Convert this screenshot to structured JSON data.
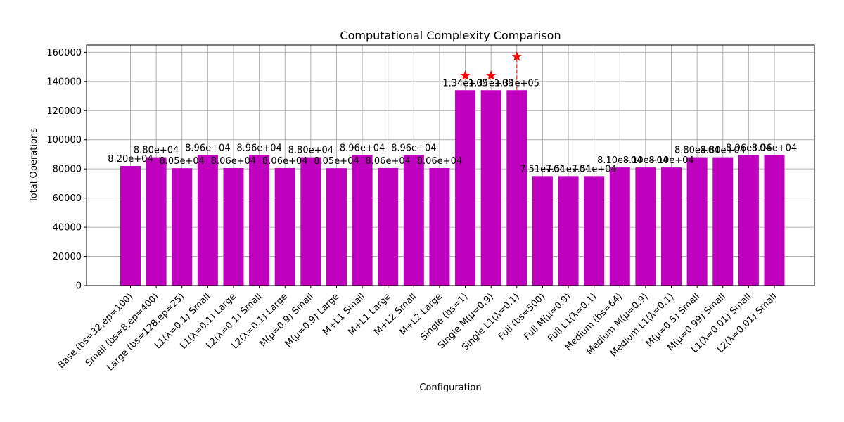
{
  "chart_data": {
    "type": "bar",
    "title": "Computational Complexity Comparison",
    "xlabel": "Configuration",
    "ylabel": "Total Operations",
    "ylim": [
      0,
      165000
    ],
    "yticks": [
      0,
      20000,
      40000,
      60000,
      80000,
      100000,
      120000,
      140000,
      160000
    ],
    "grid": true,
    "bar_color": "#bf00bf",
    "marker_color": "#ff0000",
    "categories": [
      "Base (bs=32,ep=100)",
      "Small (bs=8,ep=400)",
      "Large (bs=128,ep=25)",
      "L1(λ=0.1) Small",
      "L1(λ=0.1) Large",
      "L2(λ=0.1) Small",
      "L2(λ=0.1) Large",
      "M(μ=0.9) Small",
      "M(μ=0.9) Large",
      "M+L1 Small",
      "M+L1 Large",
      "M+L2 Small",
      "M+L2 Large",
      "Single (bs=1)",
      "Single M(μ=0.9)",
      "Single L1(λ=0.1)",
      "Full (bs=500)",
      "Full M(μ=0.9)",
      "Full L1(λ=0.1)",
      "Medium (bs=64)",
      "Medium M(μ=0.9)",
      "Medium L1(λ=0.1)",
      "M(μ=0.5) Small",
      "M(μ=0.99) Small",
      "L1(λ=0.01) Small",
      "L2(λ=0.01) Small"
    ],
    "values": [
      82000,
      88000,
      80500,
      89600,
      80600,
      89600,
      80600,
      88000,
      80500,
      89600,
      80600,
      89600,
      80600,
      134000,
      134000,
      134000,
      75100,
      75100,
      75100,
      81000,
      81000,
      81000,
      88000,
      88000,
      89600,
      89600
    ],
    "data_labels": [
      "8.20e+04",
      "8.80e+04",
      "8.05e+04",
      "8.96e+04",
      "8.06e+04",
      "8.96e+04",
      "8.06e+04",
      "8.80e+04",
      "8.05e+04",
      "8.96e+04",
      "8.06e+04",
      "8.96e+04",
      "8.06e+04",
      "1.34e+05",
      "1.34e+05",
      "1.34e+05",
      "7.51e+04",
      "7.51e+04",
      "7.51e+04",
      "8.10e+04",
      "8.10e+04",
      "8.10e+04",
      "8.80e+04",
      "8.80e+04",
      "8.96e+04",
      "8.96e+04"
    ],
    "markers": [
      {
        "category": "Single (bs=1)",
        "y": 144000
      },
      {
        "category": "Single M(μ=0.9)",
        "y": 144000
      },
      {
        "category": "Single L1(λ=0.1)",
        "y": 157000
      }
    ],
    "dashed_lines": [
      {
        "category": "Single L1(λ=0.1)",
        "y_from": 134000,
        "y_to": 157000
      }
    ]
  }
}
